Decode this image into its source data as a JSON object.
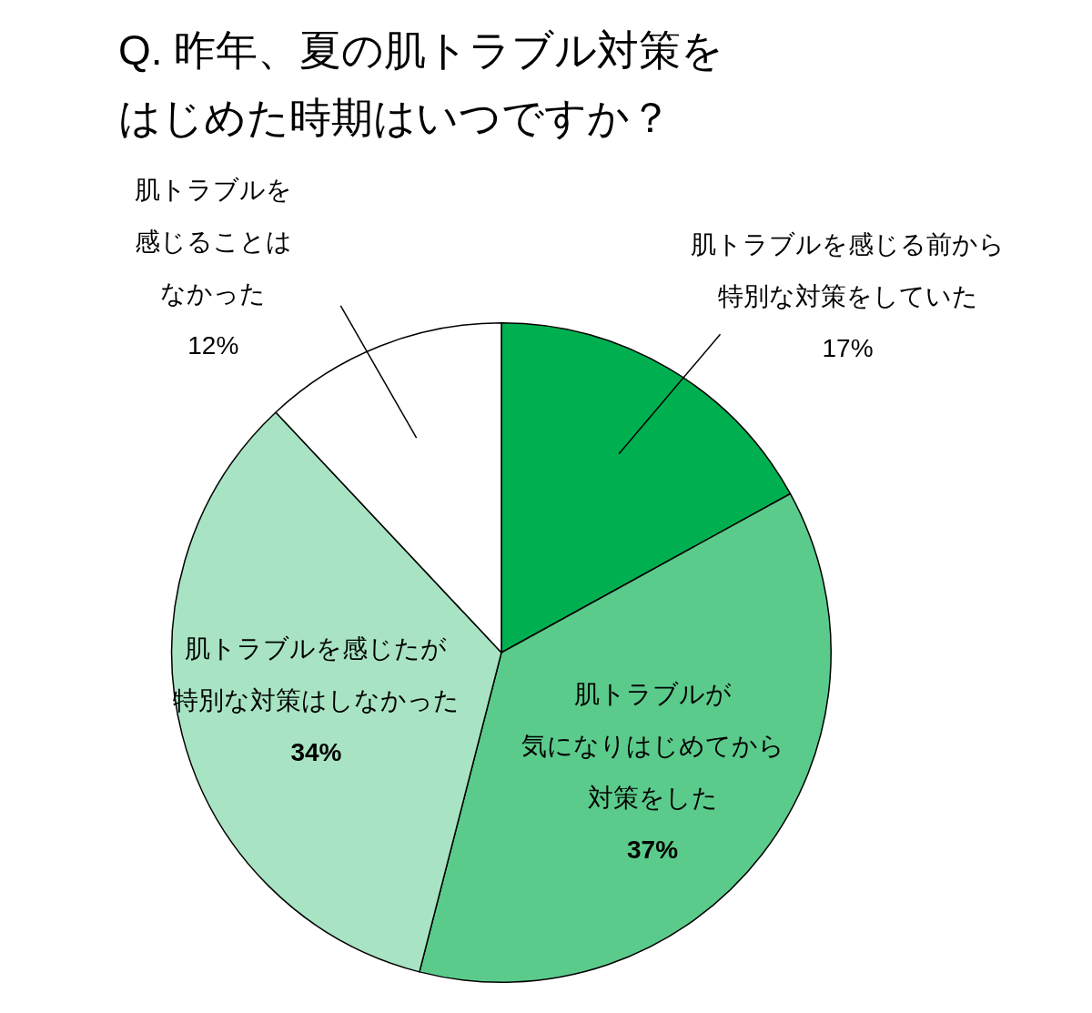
{
  "chart_data": {
    "type": "pie",
    "title": "Q. 昨年、夏の肌トラブル対策をはじめた時期はいつですか？",
    "categories": [
      "肌トラブルを感じる前から特別な対策をしていた",
      "肌トラブルが気になりはじめてから対策をした",
      "肌トラブルを感じたが特別な対策はしなかった",
      "肌トラブルを感じることはなかった"
    ],
    "values": [
      17,
      37,
      34,
      12
    ],
    "value_labels": [
      "17%",
      "37%",
      "34%",
      "12%"
    ],
    "colors": [
      "#00b050",
      "#5bcb8b",
      "#a8e4c3",
      "#ffffff"
    ],
    "legend": false
  }
}
